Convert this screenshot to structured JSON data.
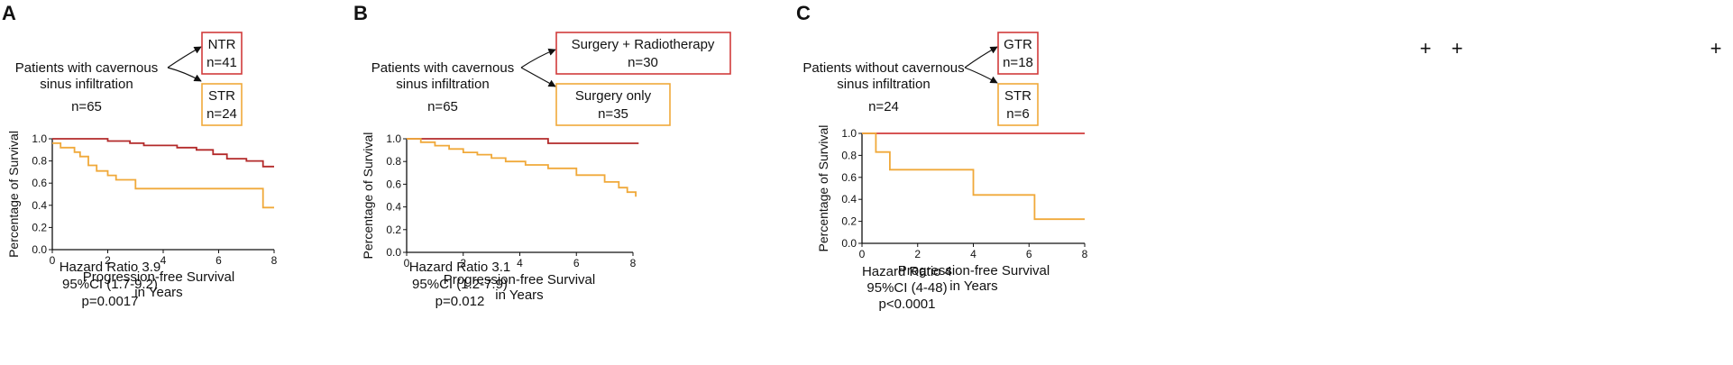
{
  "panels": [
    {
      "letter": "A",
      "description": [
        "Patients with cavernous",
        "sinus infiltration",
        "n=65"
      ],
      "groups": [
        {
          "lines": [
            "NTR",
            "n=41"
          ],
          "color": "#d13b3b"
        },
        {
          "lines": [
            "STR",
            "n=24"
          ],
          "color": "#f0a93a"
        }
      ],
      "stats": [
        "Hazard Ratio 3.9",
        "95%CI (1.7-9.2)",
        "p=0.0017"
      ]
    },
    {
      "letter": "B",
      "description": [
        "Patients with cavernous",
        "sinus infiltration",
        "n=65"
      ],
      "groups": [
        {
          "lines": [
            "Surgery + Radiotherapy",
            "n=30"
          ],
          "color": "#d13b3b"
        },
        {
          "lines": [
            "Surgery only",
            "n=35"
          ],
          "color": "#f0a93a"
        }
      ],
      "stats": [
        "Hazard Ratio 3.1",
        "95%CI (1.2-7.9)",
        "p=0.012"
      ]
    },
    {
      "letter": "C",
      "description": [
        "Patients without cavernous",
        "sinus infiltration",
        "n=24"
      ],
      "groups": [
        {
          "lines": [
            "GTR",
            "n=18"
          ],
          "color": "#d13b3b"
        },
        {
          "lines": [
            "STR",
            "n=6"
          ],
          "color": "#f0a93a"
        }
      ],
      "stats": [
        "Hazard Ratio 4",
        "95%CI (4-48)",
        "p<0.0001"
      ]
    }
  ],
  "chart_data": [
    {
      "type": "line",
      "title": "",
      "xlabel": "Progression-free Survival in Years",
      "ylabel": "Percentage of Survival",
      "xlim": [
        0,
        8
      ],
      "ylim": [
        0,
        1.0
      ],
      "xticks": [
        "0",
        "2",
        "4",
        "6",
        "8"
      ],
      "yticks": [
        "0.0",
        "0.2",
        "0.4",
        "0.6",
        "0.8",
        "1.0"
      ],
      "series": [
        {
          "name": "NTR",
          "color": "#b32a2a",
          "x": [
            0,
            2.0,
            2.8,
            3.3,
            4.5,
            5.2,
            5.8,
            6.3,
            7.0,
            7.6,
            8.0
          ],
          "y": [
            1.0,
            0.98,
            0.96,
            0.94,
            0.92,
            0.9,
            0.86,
            0.82,
            0.8,
            0.75,
            0.75
          ]
        },
        {
          "name": "STR",
          "color": "#f0a93a",
          "x": [
            0,
            0.3,
            0.8,
            1.0,
            1.3,
            1.6,
            2.0,
            2.3,
            3.0,
            5.0,
            7.5,
            7.6,
            8.0
          ],
          "y": [
            0.96,
            0.92,
            0.88,
            0.84,
            0.76,
            0.71,
            0.67,
            0.63,
            0.55,
            0.55,
            0.55,
            0.38,
            0.38
          ]
        }
      ]
    },
    {
      "type": "line",
      "title": "",
      "xlabel": "Progression-free Survival in Years",
      "ylabel": "Percentage of Survival",
      "xlim": [
        0,
        8
      ],
      "ylim": [
        0,
        1.0
      ],
      "xticks": [
        "0",
        "2",
        "4",
        "6",
        "8"
      ],
      "yticks": [
        "0.0",
        "0.2",
        "0.4",
        "0.6",
        "0.8",
        "1.0"
      ],
      "series": [
        {
          "name": "Surgery + Radiotherapy",
          "color": "#b32a2a",
          "x": [
            0,
            5.0,
            8.2
          ],
          "y": [
            1.0,
            0.96,
            0.96
          ]
        },
        {
          "name": "Surgery only",
          "color": "#f0a93a",
          "x": [
            0,
            0.5,
            1.0,
            1.5,
            2.0,
            2.5,
            3.0,
            3.5,
            4.2,
            5.0,
            6.0,
            7.0,
            7.5,
            7.8,
            8.1
          ],
          "y": [
            1.0,
            0.97,
            0.94,
            0.91,
            0.88,
            0.86,
            0.83,
            0.8,
            0.77,
            0.74,
            0.68,
            0.62,
            0.57,
            0.53,
            0.49
          ]
        }
      ]
    },
    {
      "type": "line",
      "title": "",
      "xlabel": "Progression-free Survival in Years",
      "ylabel": "Percentage of Survival",
      "xlim": [
        0,
        8
      ],
      "ylim": [
        0,
        1.0
      ],
      "xticks": [
        "0",
        "2",
        "4",
        "6",
        "8"
      ],
      "yticks": [
        "0.0",
        "0.2",
        "0.4",
        "0.6",
        "0.8",
        "1.0"
      ],
      "series": [
        {
          "name": "GTR",
          "color": "#d13b3b",
          "x": [
            0,
            8.0
          ],
          "y": [
            1.0,
            1.0
          ]
        },
        {
          "name": "STR",
          "color": "#f0a93a",
          "x": [
            0,
            0.5,
            1.0,
            4.0,
            6.2,
            8.0
          ],
          "y": [
            1.0,
            0.83,
            0.67,
            0.44,
            0.22,
            0.22
          ]
        }
      ]
    }
  ],
  "decor": {
    "plus_marks": [
      "+",
      "+",
      "+"
    ],
    "plus_color": "#b8b8b8"
  }
}
